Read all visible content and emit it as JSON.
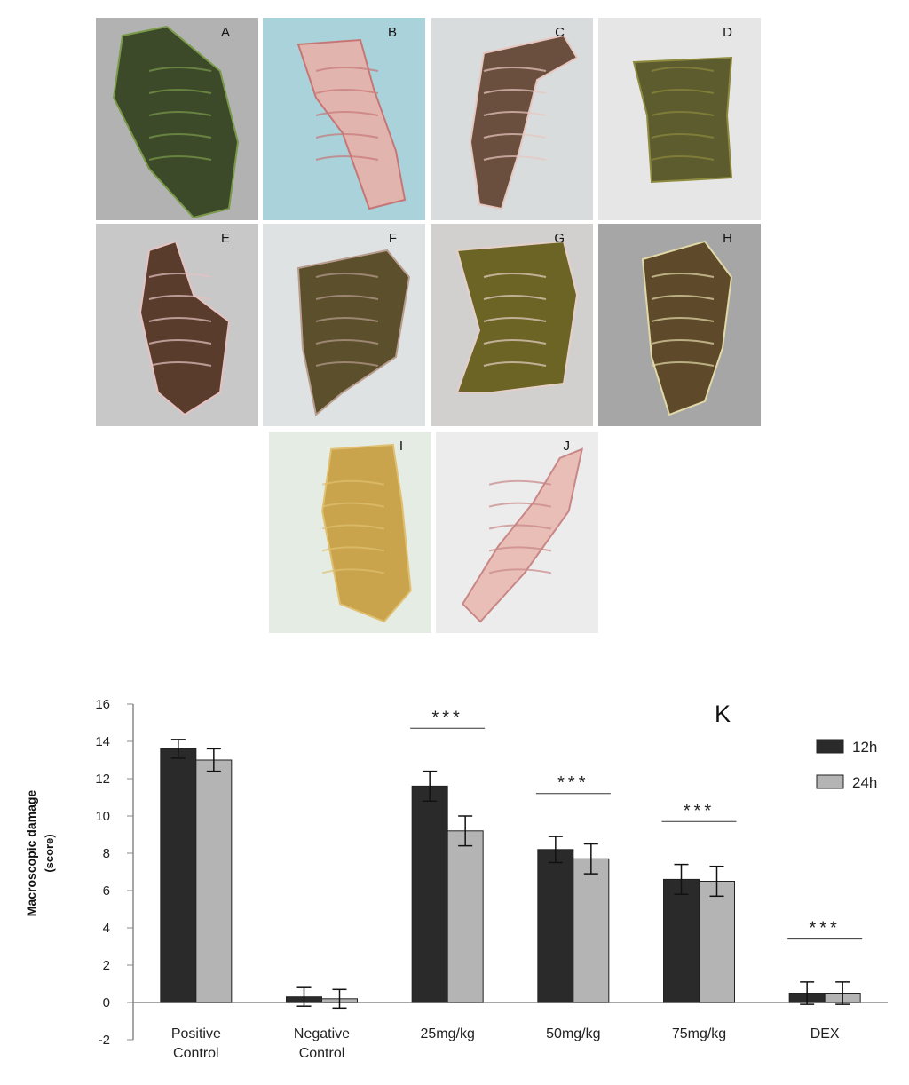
{
  "photo_panels": [
    {
      "letter": "A",
      "bg": "#b2b2b2",
      "tissue": "#3c4a2a",
      "accent": "#7a9a4a"
    },
    {
      "letter": "B",
      "bg": "#a9d2da",
      "tissue": "#e2b4ae",
      "accent": "#c77676"
    },
    {
      "letter": "C",
      "bg": "#d8dcdc",
      "tissue": "#6a4f3e",
      "accent": "#e8c6c0"
    },
    {
      "letter": "D",
      "bg": "#e6e6e6",
      "tissue": "#5d5c2e",
      "accent": "#8e8a3e"
    },
    {
      "letter": "E",
      "bg": "#c8c8c8",
      "tissue": "#5a3c2c",
      "accent": "#e6c2c2"
    },
    {
      "letter": "F",
      "bg": "#dfe2e2",
      "tissue": "#5b4f2c",
      "accent": "#b89c8e"
    },
    {
      "letter": "G",
      "bg": "#d2d0ce",
      "tissue": "#6b6424",
      "accent": "#e6cfc8"
    },
    {
      "letter": "H",
      "bg": "#a6a6a6",
      "tissue": "#5e4a2a",
      "accent": "#e1d8a8"
    },
    {
      "letter": "I",
      "bg": "#e4ece4",
      "tissue": "#c9a44c",
      "accent": "#e0c070"
    },
    {
      "letter": "J",
      "bg": "#ececec",
      "tissue": "#e8beb6",
      "accent": "#c98686"
    }
  ],
  "chart_data": {
    "type": "bar",
    "panel_label": "K",
    "categories": [
      "Positive Control",
      "Negative Control",
      "25mg/kg",
      "50mg/kg",
      "75mg/kg",
      "DEX"
    ],
    "series": [
      {
        "name": "12h",
        "color": "#2a2a2a",
        "values": [
          13.6,
          0.3,
          11.6,
          8.2,
          6.6,
          0.5
        ],
        "errors": [
          0.5,
          0.5,
          0.8,
          0.7,
          0.8,
          0.6
        ]
      },
      {
        "name": "24h",
        "color": "#b4b4b4",
        "values": [
          13.0,
          0.2,
          9.2,
          7.7,
          6.5,
          0.5
        ],
        "errors": [
          0.6,
          0.5,
          0.8,
          0.8,
          0.8,
          0.6
        ]
      }
    ],
    "ylabel_line1": "Macroscopic damage",
    "ylabel_line2": "(score)",
    "ylim": [
      -2,
      16
    ],
    "yticks": [
      16,
      14,
      12,
      10,
      8,
      6,
      4,
      2,
      0,
      -2
    ],
    "significance": [
      {
        "category": "25mg/kg",
        "label": "***"
      },
      {
        "category": "50mg/kg",
        "label": "***"
      },
      {
        "category": "75mg/kg",
        "label": "***"
      },
      {
        "category": "DEX",
        "label": "***"
      }
    ],
    "legend_position": "top-right"
  }
}
